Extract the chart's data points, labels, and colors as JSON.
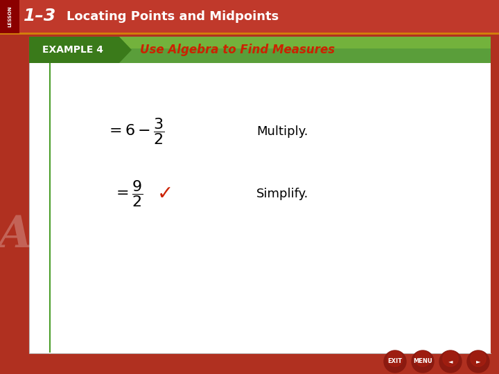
{
  "title_lesson": "1–3",
  "title_main": "Locating Points and Midpoints",
  "example_label": "EXAMPLE 4",
  "example_title": "Use Algebra to Find Measures",
  "line1_label": "Multiply.",
  "line2_label": "Simplify.",
  "header_bg": "#c0392b",
  "header_shadow": "#8b1a0a",
  "body_bg": "#ffffff",
  "outer_bg": "#b03020",
  "example_banner_green": "#5a9e3a",
  "example_banner_dark_green": "#3a7a1a",
  "example_banner_light_green": "#8dc63f",
  "example_title_color": "#cc2200",
  "example_label_color": "#ffffff",
  "math_color": "#000000",
  "checkmark_color": "#cc2200",
  "label_color": "#000000",
  "lesson_number_color": "#ffffff",
  "title_color": "#ffffff",
  "font_size_title": 13,
  "font_size_example_label": 10,
  "font_size_example_title": 12,
  "font_size_math": 16,
  "font_size_label": 13,
  "lesson_font_size": 18,
  "lesson_text_size": 5
}
